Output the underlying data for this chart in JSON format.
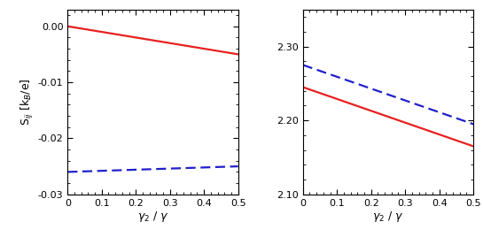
{
  "left_panel": {
    "red_solid": {
      "x": [
        0.0,
        0.5
      ],
      "y": [
        0.0,
        -0.005
      ]
    },
    "blue_dashed": {
      "x": [
        0.0,
        0.5
      ],
      "y": [
        -0.026,
        -0.025
      ]
    },
    "ylim": [
      -0.03,
      0.003
    ],
    "yticks": [
      0.0,
      -0.01,
      -0.02,
      -0.03
    ],
    "ytick_labels": [
      "0.00",
      "-0.01",
      "-0.02",
      "-0.03"
    ],
    "xlim": [
      0.0,
      0.5
    ],
    "xticks": [
      0.0,
      0.1,
      0.2,
      0.3,
      0.4,
      0.5
    ],
    "xtick_labels": [
      "0",
      "0.1",
      "0.2",
      "0.3",
      "0.4",
      "0.5"
    ],
    "ylabel": "S$_{ij}$ [k$_B$/e]",
    "xlabel": "$\\gamma_2$ / $\\gamma$"
  },
  "right_panel": {
    "red_solid": {
      "x": [
        0.0,
        0.5
      ],
      "y": [
        2.245,
        2.165
      ]
    },
    "blue_dashed": {
      "x": [
        0.0,
        0.5
      ],
      "y": [
        2.275,
        2.195
      ]
    },
    "ylim": [
      2.1,
      2.35
    ],
    "yticks": [
      2.1,
      2.2,
      2.3
    ],
    "ytick_labels": [
      "2.10",
      "2.20",
      "2.30"
    ],
    "xlim": [
      0.0,
      0.5
    ],
    "xticks": [
      0.0,
      0.1,
      0.2,
      0.3,
      0.4,
      0.5
    ],
    "xtick_labels": [
      "0",
      "0.1",
      "0.2",
      "0.3",
      "0.4",
      "0.5"
    ],
    "xlabel": "$\\gamma_2$ / $\\gamma$"
  },
  "line_color_red": "#e82020",
  "line_color_blue": "#2020cc",
  "line_width": 1.6,
  "tick_direction": "in",
  "fig_width": 5.45,
  "fig_height": 2.68,
  "dpi": 100,
  "tick_fontsize": 8,
  "label_fontsize": 9
}
